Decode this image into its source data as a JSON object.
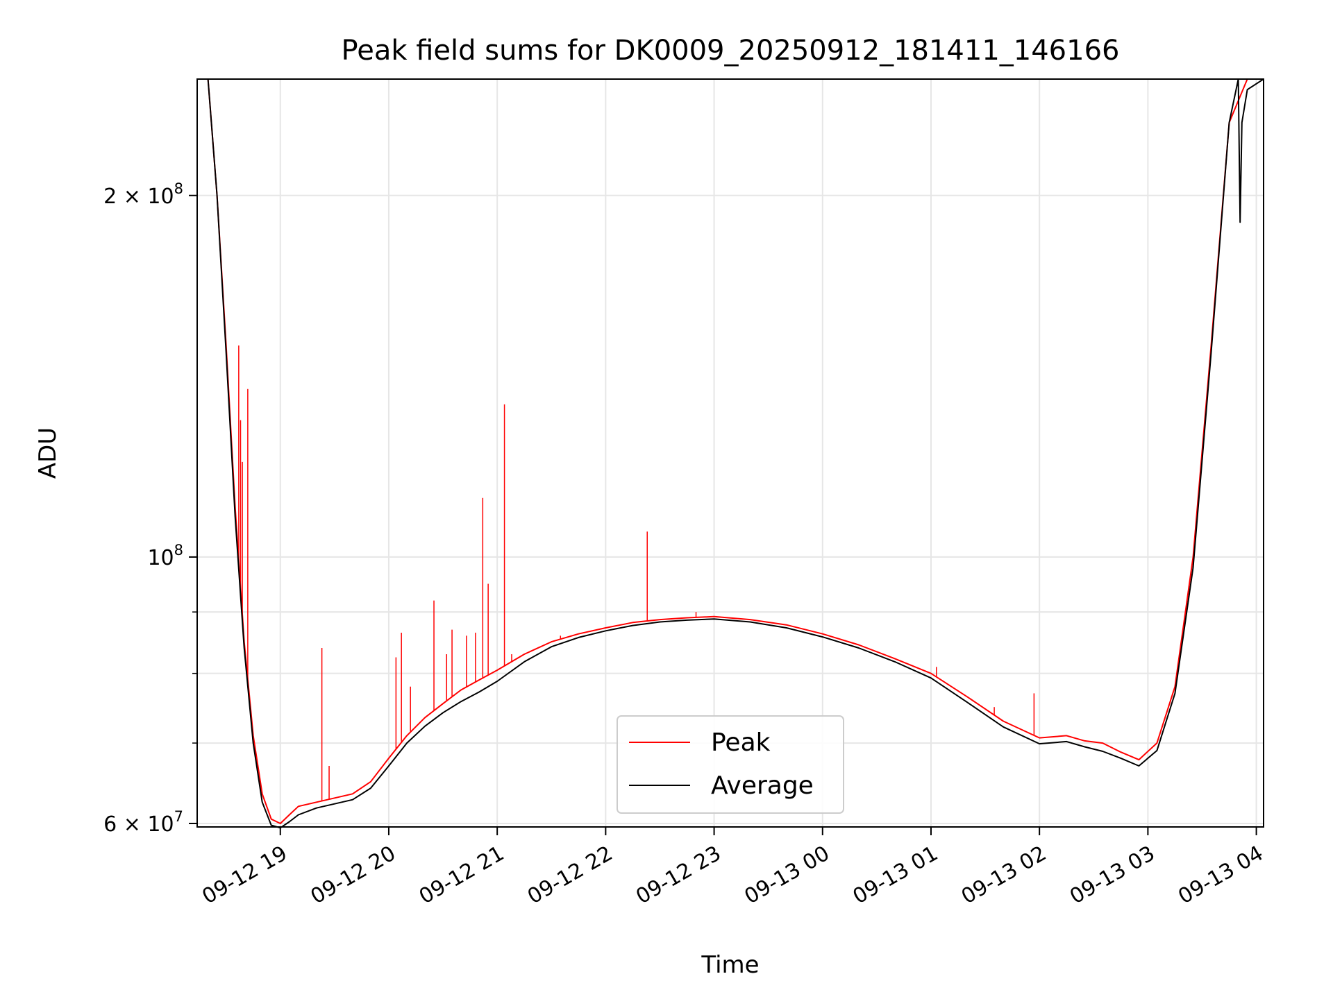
{
  "chart_data": {
    "type": "line",
    "title": "Peak field sums for DK0009_20250912_181411_146166",
    "xlabel": "Time",
    "ylabel": "ADU",
    "yscale": "log",
    "xlim": [
      "2025-09-12T18:14:00",
      "2025-09-13T04:04:00"
    ],
    "ylim": [
      59600000,
      250000000
    ],
    "grid": true,
    "legend_position": "lower-center",
    "x_tick_labels": [
      "09-12 19",
      "09-12 20",
      "09-12 21",
      "09-12 22",
      "09-12 23",
      "09-13 00",
      "09-13 01",
      "09-13 02",
      "09-13 03",
      "09-13 04"
    ],
    "x_ticks": [
      "2025-09-12T19:00:00",
      "2025-09-12T20:00:00",
      "2025-09-12T21:00:00",
      "2025-09-12T22:00:00",
      "2025-09-12T23:00:00",
      "2025-09-13T00:00:00",
      "2025-09-13T01:00:00",
      "2025-09-13T02:00:00",
      "2025-09-13T03:00:00",
      "2025-09-13T04:00:00"
    ],
    "y_major_ticks": [
      {
        "value": 60000000,
        "base": "6 × 10",
        "exp": "7"
      },
      {
        "value": 100000000,
        "base": "10",
        "exp": "8"
      },
      {
        "value": 200000000,
        "base": "2 × 10",
        "exp": "8"
      }
    ],
    "y_minor_ticks": [
      70000000,
      80000000,
      90000000
    ],
    "series": [
      {
        "name": "Peak",
        "color": "#ff0000",
        "x": [
          "2025-09-12T18:14:00",
          "2025-09-12T18:20:00",
          "2025-09-12T18:25:00",
          "2025-09-12T18:30:00",
          "2025-09-12T18:35:00",
          "2025-09-12T18:40:00",
          "2025-09-12T18:45:00",
          "2025-09-12T18:50:00",
          "2025-09-12T18:55:00",
          "2025-09-12T19:00:00",
          "2025-09-12T19:05:00",
          "2025-09-12T19:10:00",
          "2025-09-12T19:20:00",
          "2025-09-12T19:30:00",
          "2025-09-12T19:40:00",
          "2025-09-12T19:50:00",
          "2025-09-12T20:00:00",
          "2025-09-12T20:10:00",
          "2025-09-12T20:20:00",
          "2025-09-12T20:30:00",
          "2025-09-12T20:40:00",
          "2025-09-12T20:50:00",
          "2025-09-12T21:00:00",
          "2025-09-12T21:15:00",
          "2025-09-12T21:30:00",
          "2025-09-12T21:45:00",
          "2025-09-12T22:00:00",
          "2025-09-12T22:15:00",
          "2025-09-12T22:30:00",
          "2025-09-12T22:45:00",
          "2025-09-12T23:00:00",
          "2025-09-12T23:20:00",
          "2025-09-12T23:40:00",
          "2025-09-13T00:00:00",
          "2025-09-13T00:20:00",
          "2025-09-13T00:40:00",
          "2025-09-13T01:00:00",
          "2025-09-13T01:20:00",
          "2025-09-13T01:40:00",
          "2025-09-13T02:00:00",
          "2025-09-13T02:15:00",
          "2025-09-13T02:25:00",
          "2025-09-13T02:35:00",
          "2025-09-13T02:45:00",
          "2025-09-13T02:55:00",
          "2025-09-13T03:05:00",
          "2025-09-13T03:15:00",
          "2025-09-13T03:25:00",
          "2025-09-13T03:35:00",
          "2025-09-13T03:45:00",
          "2025-09-13T03:55:00",
          "2025-09-13T04:04:00"
        ],
        "y": [
          250000000,
          250000000,
          200000000,
          150000000,
          110000000,
          85000000,
          71000000,
          63500000,
          60500000,
          60000000,
          61000000,
          62000000,
          62500000,
          63000000,
          63500000,
          65000000,
          68000000,
          71000000,
          73500000,
          75500000,
          77500000,
          79000000,
          80500000,
          83000000,
          85000000,
          86300000,
          87300000,
          88200000,
          88700000,
          89000000,
          89200000,
          88700000,
          87800000,
          86300000,
          84500000,
          82300000,
          80000000,
          76500000,
          73000000,
          70700000,
          71000000,
          70300000,
          70000000,
          68800000,
          67800000,
          70000000,
          78000000,
          100000000,
          150000000,
          230000000,
          250000000,
          250000000
        ],
        "spikes": [
          {
            "x": "2025-09-12T18:37:00",
            "y": 150000000
          },
          {
            "x": "2025-09-12T18:38:00",
            "y": 130000000
          },
          {
            "x": "2025-09-12T18:39:00",
            "y": 120000000
          },
          {
            "x": "2025-09-12T18:42:00",
            "y": 138000000
          },
          {
            "x": "2025-09-12T19:23:00",
            "y": 84000000
          },
          {
            "x": "2025-09-12T19:27:00",
            "y": 67000000
          },
          {
            "x": "2025-09-12T20:04:00",
            "y": 82500000
          },
          {
            "x": "2025-09-12T20:07:00",
            "y": 86500000
          },
          {
            "x": "2025-09-12T20:12:00",
            "y": 78000000
          },
          {
            "x": "2025-09-12T20:25:00",
            "y": 92000000
          },
          {
            "x": "2025-09-12T20:32:00",
            "y": 83000000
          },
          {
            "x": "2025-09-12T20:35:00",
            "y": 87000000
          },
          {
            "x": "2025-09-12T20:43:00",
            "y": 86000000
          },
          {
            "x": "2025-09-12T20:48:00",
            "y": 86500000
          },
          {
            "x": "2025-09-12T20:52:00",
            "y": 112000000
          },
          {
            "x": "2025-09-12T20:55:00",
            "y": 95000000
          },
          {
            "x": "2025-09-12T21:04:00",
            "y": 134000000
          },
          {
            "x": "2025-09-12T21:08:00",
            "y": 83000000
          },
          {
            "x": "2025-09-12T21:35:00",
            "y": 86000000
          },
          {
            "x": "2025-09-12T22:23:00",
            "y": 105000000
          },
          {
            "x": "2025-09-12T22:50:00",
            "y": 90000000
          },
          {
            "x": "2025-09-13T01:03:00",
            "y": 81000000
          },
          {
            "x": "2025-09-13T01:35:00",
            "y": 75000000
          },
          {
            "x": "2025-09-13T01:57:00",
            "y": 77000000
          }
        ]
      },
      {
        "name": "Average",
        "color": "#000000",
        "x": [
          "2025-09-12T18:14:00",
          "2025-09-12T18:20:00",
          "2025-09-12T18:25:00",
          "2025-09-12T18:30:00",
          "2025-09-12T18:35:00",
          "2025-09-12T18:40:00",
          "2025-09-12T18:45:00",
          "2025-09-12T18:50:00",
          "2025-09-12T18:55:00",
          "2025-09-12T19:00:00",
          "2025-09-12T19:05:00",
          "2025-09-12T19:10:00",
          "2025-09-12T19:20:00",
          "2025-09-12T19:30:00",
          "2025-09-12T19:40:00",
          "2025-09-12T19:50:00",
          "2025-09-12T20:00:00",
          "2025-09-12T20:10:00",
          "2025-09-12T20:20:00",
          "2025-09-12T20:30:00",
          "2025-09-12T20:40:00",
          "2025-09-12T20:50:00",
          "2025-09-12T21:00:00",
          "2025-09-12T21:15:00",
          "2025-09-12T21:30:00",
          "2025-09-12T21:45:00",
          "2025-09-12T22:00:00",
          "2025-09-12T22:15:00",
          "2025-09-12T22:30:00",
          "2025-09-12T22:45:00",
          "2025-09-12T23:00:00",
          "2025-09-12T23:20:00",
          "2025-09-12T23:40:00",
          "2025-09-13T00:00:00",
          "2025-09-13T00:20:00",
          "2025-09-13T00:40:00",
          "2025-09-13T01:00:00",
          "2025-09-13T01:20:00",
          "2025-09-13T01:40:00",
          "2025-09-13T02:00:00",
          "2025-09-13T02:15:00",
          "2025-09-13T02:25:00",
          "2025-09-13T02:35:00",
          "2025-09-13T02:45:00",
          "2025-09-13T02:55:00",
          "2025-09-13T03:05:00",
          "2025-09-13T03:15:00",
          "2025-09-13T03:25:00",
          "2025-09-13T03:35:00",
          "2025-09-13T03:45:00",
          "2025-09-13T03:50:00",
          "2025-09-13T03:51:00",
          "2025-09-13T03:52:00",
          "2025-09-13T03:55:00",
          "2025-09-13T04:04:00"
        ],
        "y": [
          250000000,
          250000000,
          200000000,
          148000000,
          108000000,
          84000000,
          70000000,
          62500000,
          59800000,
          59500000,
          60200000,
          61000000,
          61800000,
          62300000,
          62800000,
          64200000,
          67000000,
          70000000,
          72300000,
          74200000,
          75800000,
          77200000,
          78800000,
          81800000,
          84200000,
          85700000,
          86800000,
          87700000,
          88300000,
          88600000,
          88800000,
          88300000,
          87300000,
          85800000,
          84000000,
          81800000,
          79300000,
          75700000,
          72200000,
          69900000,
          70200000,
          69500000,
          68900000,
          68000000,
          67000000,
          69000000,
          77000000,
          98000000,
          148000000,
          230000000,
          250000000,
          190000000,
          230000000,
          245000000,
          250000000
        ]
      }
    ]
  }
}
